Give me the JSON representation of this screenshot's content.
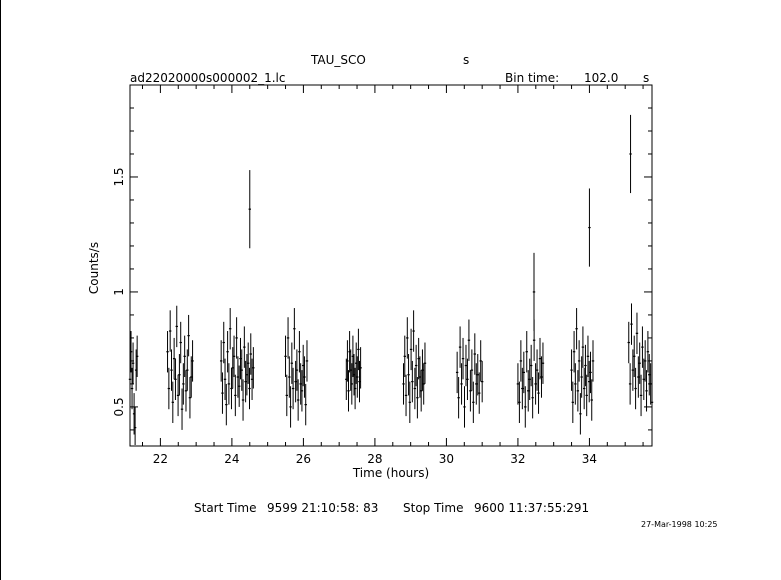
{
  "header": {
    "source": "TAU_SCO",
    "source_suffix": "s",
    "file": "ad22020000s000002_1.lc",
    "bin_label": "Bin time:",
    "bin_value": "102.0",
    "bin_unit": "s"
  },
  "footer": {
    "start_label": "Start Time",
    "start_value": "9599 21:10:58: 83",
    "stop_label": "Stop Time",
    "stop_value": "9600 11:37:55:291",
    "stamp": "27-Mar-1998 10:25"
  },
  "chart_data": {
    "type": "scatter",
    "title": "",
    "xlabel": "Time (hours)",
    "ylabel": "Counts/s",
    "xlim": [
      21.15,
      35.75
    ],
    "ylim": [
      0.33,
      1.9
    ],
    "xticks": [
      22,
      24,
      26,
      28,
      30,
      32,
      34
    ],
    "yticks": [
      0.5,
      1,
      1.5
    ],
    "xtick_labels": [
      "22",
      "24",
      "26",
      "28",
      "30",
      "32",
      "34"
    ],
    "ytick_labels": [
      "0.5",
      "1",
      "1.5"
    ],
    "error_bars": true,
    "grid": false,
    "segments": [
      {
        "start": 21.15,
        "end": 21.35,
        "y": [
          0.62,
          0.74,
          0.58,
          0.69,
          0.47,
          0.41,
          0.66,
          0.72
        ]
      },
      {
        "start": 22.2,
        "end": 22.9,
        "y": [
          0.74,
          0.58,
          0.83,
          0.66,
          0.52,
          0.71,
          0.62,
          0.85,
          0.55,
          0.64,
          0.78,
          0.49,
          0.6,
          0.72,
          0.57,
          0.66,
          0.81,
          0.54,
          0.63,
          0.7
        ]
      },
      {
        "start": 23.7,
        "end": 24.6,
        "y": [
          0.7,
          0.56,
          0.78,
          0.62,
          0.51,
          0.74,
          0.6,
          0.84,
          0.58,
          0.67,
          0.72,
          0.55,
          0.8,
          0.63,
          0.59,
          0.71,
          0.66,
          0.53,
          0.76,
          0.61,
          0.64,
          0.69,
          0.58,
          0.73,
          0.62,
          0.67
        ]
      },
      {
        "start": 24.5,
        "end": 24.5,
        "y": [
          1.36
        ]
      },
      {
        "start": 25.5,
        "end": 26.1,
        "y": [
          0.72,
          0.55,
          0.8,
          0.63,
          0.5,
          0.69,
          0.58,
          0.84,
          0.61,
          0.66,
          0.53,
          0.74,
          0.6,
          0.57,
          0.68,
          0.63,
          0.51,
          0.7
        ]
      },
      {
        "start": 27.2,
        "end": 27.6,
        "y": [
          0.62,
          0.7,
          0.57,
          0.74,
          0.66,
          0.6,
          0.72,
          0.64,
          0.58,
          0.69,
          0.63,
          0.75,
          0.61,
          0.67
        ]
      },
      {
        "start": 28.8,
        "end": 29.4,
        "y": [
          0.6,
          0.72,
          0.55,
          0.8,
          0.64,
          0.52,
          0.75,
          0.61,
          0.83,
          0.58,
          0.68,
          0.54,
          0.71,
          0.63,
          0.57,
          0.66,
          0.6,
          0.69
        ]
      },
      {
        "start": 30.3,
        "end": 31.0,
        "y": [
          0.65,
          0.54,
          0.76,
          0.6,
          0.71,
          0.5,
          0.68,
          0.62,
          0.79,
          0.57,
          0.66,
          0.52,
          0.73,
          0.6,
          0.64,
          0.56,
          0.7,
          0.61
        ]
      },
      {
        "start": 32.0,
        "end": 32.7,
        "y": [
          0.6,
          0.52,
          0.7,
          0.58,
          0.65,
          0.5,
          0.74,
          0.57,
          0.62,
          0.68,
          0.54,
          0.79,
          0.6,
          0.66,
          0.56,
          0.71,
          0.63,
          0.69
        ]
      },
      {
        "start": 32.45,
        "end": 32.45,
        "y": [
          1.0
        ]
      },
      {
        "start": 33.5,
        "end": 34.1,
        "y": [
          0.66,
          0.52,
          0.74,
          0.6,
          0.84,
          0.57,
          0.7,
          0.47,
          0.63,
          0.76,
          0.58,
          0.68,
          0.55,
          0.72,
          0.61,
          0.65,
          0.53,
          0.7
        ]
      },
      {
        "start": 34.0,
        "end": 34.0,
        "y": [
          1.28
        ]
      },
      {
        "start": 35.1,
        "end": 35.75,
        "y": [
          0.78,
          0.6,
          0.86,
          0.66,
          0.72,
          0.58,
          0.82,
          0.63,
          0.69,
          0.55,
          0.76,
          0.62,
          0.7,
          0.57,
          0.74,
          0.64,
          0.6,
          0.52
        ]
      },
      {
        "start": 35.15,
        "end": 35.15,
        "y": [
          1.6
        ]
      }
    ],
    "error_halfwidth": 0.09,
    "spike_error_halfwidth": 0.17
  }
}
